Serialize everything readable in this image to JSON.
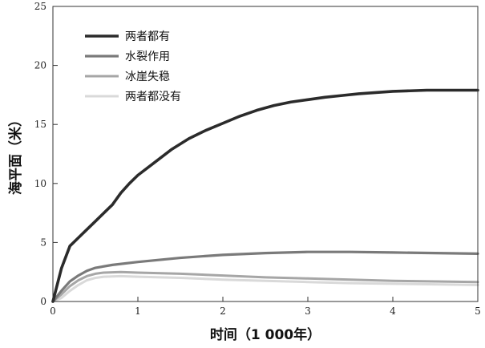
{
  "chart_data": {
    "type": "line",
    "xlabel": "时间（1 000年）",
    "ylabel": "海平面（米）",
    "xlim": [
      0,
      5
    ],
    "ylim": [
      0,
      25
    ],
    "xticks": [
      0,
      1,
      2,
      3,
      4,
      5
    ],
    "yticks": [
      0,
      5,
      10,
      15,
      20,
      25
    ],
    "grid": false,
    "legend_position": "top-left",
    "series": [
      {
        "name": "两者都有",
        "color": "#2b2b2b",
        "x": [
          0,
          0.1,
          0.2,
          0.3,
          0.4,
          0.5,
          0.6,
          0.7,
          0.8,
          0.9,
          1.0,
          1.2,
          1.4,
          1.6,
          1.8,
          2.0,
          2.2,
          2.4,
          2.6,
          2.8,
          3.0,
          3.2,
          3.4,
          3.6,
          3.8,
          4.0,
          4.2,
          4.4,
          4.6,
          4.8,
          5.0
        ],
        "y": [
          0,
          2.8,
          4.7,
          5.4,
          6.1,
          6.8,
          7.5,
          8.2,
          9.2,
          10.0,
          10.7,
          11.8,
          12.9,
          13.8,
          14.5,
          15.1,
          15.7,
          16.2,
          16.6,
          16.9,
          17.1,
          17.3,
          17.45,
          17.6,
          17.7,
          17.8,
          17.85,
          17.9,
          17.9,
          17.9,
          17.9
        ],
        "stroke_width": 3.6
      },
      {
        "name": "水裂作用",
        "color": "#7a7a7a",
        "x": [
          0,
          0.1,
          0.2,
          0.3,
          0.4,
          0.5,
          0.7,
          1.0,
          1.5,
          2.0,
          2.5,
          3.0,
          3.5,
          4.0,
          4.5,
          5.0
        ],
        "y": [
          0,
          0.9,
          1.7,
          2.2,
          2.6,
          2.85,
          3.1,
          3.35,
          3.7,
          3.95,
          4.1,
          4.2,
          4.2,
          4.15,
          4.1,
          4.05
        ],
        "stroke_width": 3.2
      },
      {
        "name": "冰崖失稳",
        "color": "#a6a6a6",
        "x": [
          0,
          0.1,
          0.2,
          0.3,
          0.4,
          0.5,
          0.6,
          0.8,
          1.0,
          1.5,
          2.0,
          2.5,
          3.0,
          3.5,
          4.0,
          4.5,
          5.0
        ],
        "y": [
          0,
          0.6,
          1.3,
          1.8,
          2.15,
          2.35,
          2.45,
          2.5,
          2.45,
          2.35,
          2.2,
          2.05,
          1.95,
          1.85,
          1.75,
          1.7,
          1.65
        ],
        "stroke_width": 3.0
      },
      {
        "name": "两者都没有",
        "color": "#d9d9d9",
        "x": [
          0,
          0.1,
          0.2,
          0.3,
          0.4,
          0.5,
          0.6,
          0.8,
          1.0,
          1.5,
          2.0,
          2.5,
          3.0,
          3.5,
          4.0,
          4.5,
          5.0
        ],
        "y": [
          0,
          0.3,
          0.9,
          1.4,
          1.8,
          2.0,
          2.1,
          2.15,
          2.1,
          2.0,
          1.85,
          1.75,
          1.65,
          1.55,
          1.5,
          1.45,
          1.4
        ],
        "stroke_width": 3.0
      }
    ]
  }
}
